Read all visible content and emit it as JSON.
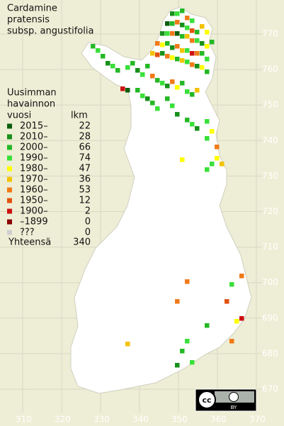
{
  "title": [
    "Cardamine",
    "pratensis",
    "subsp. angustifolia"
  ],
  "legend": {
    "heading": [
      "Uusimman",
      "havainnon",
      "vuosi"
    ],
    "count_heading": "lkm",
    "entries": [
      {
        "label": "2015–",
        "count": 22,
        "color": "#0b5e0b"
      },
      {
        "label": "2010–",
        "count": 28,
        "color": "#17901a"
      },
      {
        "label": "2000–",
        "count": 66,
        "color": "#25b825"
      },
      {
        "label": "1990–",
        "count": 74,
        "color": "#39e039"
      },
      {
        "label": "1980–",
        "count": 47,
        "color": "#ffff00"
      },
      {
        "label": "1970–",
        "count": 36,
        "color": "#f2c200"
      },
      {
        "label": "1960–",
        "count": 53,
        "color": "#f07a18"
      },
      {
        "label": "1950–",
        "count": 12,
        "color": "#e25210"
      },
      {
        "label": "1900–",
        "count": 2,
        "color": "#cc1111"
      },
      {
        "label": "–1899",
        "count": 0,
        "color": "#8b0000"
      },
      {
        "label": "???",
        "count": 0,
        "color": "#cfcfcf"
      }
    ],
    "total_label": "Yhteensä",
    "total": 340
  },
  "grid": {
    "northing_ticks": [
      670,
      680,
      690,
      700,
      710,
      720,
      730,
      740,
      750,
      760,
      770
    ],
    "easting_ticks": [
      310,
      320,
      330,
      340,
      350,
      360,
      370
    ]
  },
  "license": {
    "cc": "cc",
    "by": "BY"
  }
}
